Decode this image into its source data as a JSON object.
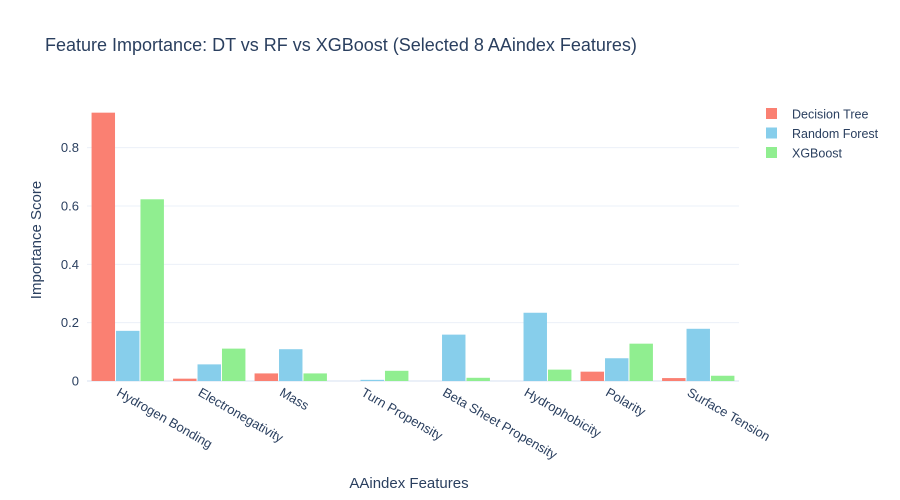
{
  "chart_data": {
    "type": "bar",
    "title": "Feature Importance: DT vs RF vs XGBoost (Selected 8 AAindex Features)",
    "xlabel": "AAindex Features",
    "ylabel": "Importance Score",
    "ylim": [
      0,
      0.96
    ],
    "yticks": [
      "0",
      "0.2",
      "0.4",
      "0.6",
      "0.8"
    ],
    "ytick_values": [
      0,
      0.2,
      0.4,
      0.6,
      0.8
    ],
    "grid": true,
    "legend_position": "top-right",
    "categories": [
      "Hydrogen Bonding",
      "Electronegativity",
      "Mass",
      "Turn Propensity",
      "Beta Sheet Propensity",
      "Hydrophobicity",
      "Polarity",
      "Surface Tension"
    ],
    "series": [
      {
        "name": "Decision Tree",
        "color": "#fa8072",
        "values": [
          0.92,
          0.008,
          0.026,
          0.0,
          0.0,
          0.0,
          0.032,
          0.01
        ]
      },
      {
        "name": "Random Forest",
        "color": "#87ceeb",
        "values": [
          0.172,
          0.057,
          0.109,
          0.004,
          0.159,
          0.234,
          0.078,
          0.179
        ]
      },
      {
        "name": "XGBoost",
        "color": "#90ee90",
        "values": [
          0.623,
          0.111,
          0.026,
          0.035,
          0.011,
          0.039,
          0.128,
          0.018
        ]
      }
    ]
  }
}
